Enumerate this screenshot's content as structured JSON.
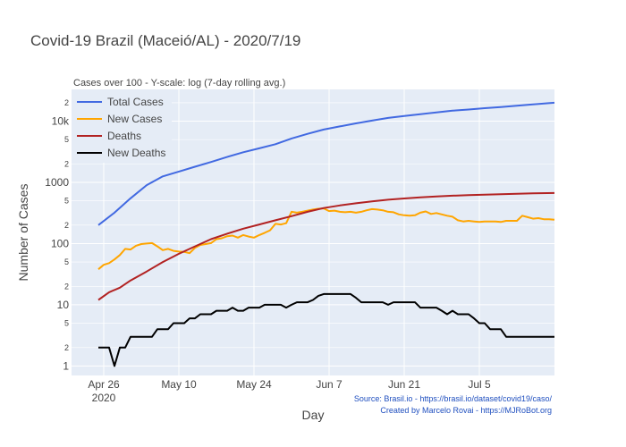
{
  "chart_data": {
    "type": "line",
    "title": "Covid-19 Brazil (Maceió/AL) - 2020/7/19",
    "subtitle": "Cases over 100 - Y-scale: log (7-day rolling avg.)",
    "xlabel": "Day",
    "ylabel": "Number of Cases",
    "yscale": "log",
    "ylim": [
      0.7,
      33000
    ],
    "xlim": [
      "2020-04-20",
      "2020-07-19"
    ],
    "grid": true,
    "legend_position": "top-left",
    "x_ticks": [
      {
        "date": "2020-04-26",
        "label": "Apr 26",
        "sublabel": "2020"
      },
      {
        "date": "2020-05-10",
        "label": "May 10"
      },
      {
        "date": "2020-05-24",
        "label": "May 24"
      },
      {
        "date": "2020-06-07",
        "label": "Jun 7"
      },
      {
        "date": "2020-06-21",
        "label": "Jun 21"
      },
      {
        "date": "2020-07-05",
        "label": "Jul 5"
      }
    ],
    "y_major_ticks": [
      {
        "value": 1,
        "label": "1"
      },
      {
        "value": 10,
        "label": "10"
      },
      {
        "value": 100,
        "label": "100"
      },
      {
        "value": 1000,
        "label": "1000"
      },
      {
        "value": 10000,
        "label": "10k"
      }
    ],
    "y_minor_ticks": [
      {
        "value": 2,
        "label": "2"
      },
      {
        "value": 5,
        "label": "5"
      },
      {
        "value": 20,
        "label": "2"
      },
      {
        "value": 50,
        "label": "5"
      },
      {
        "value": 200,
        "label": "2"
      },
      {
        "value": 500,
        "label": "5"
      },
      {
        "value": 2000,
        "label": "2"
      },
      {
        "value": 5000,
        "label": "5"
      },
      {
        "value": 20000,
        "label": "2"
      }
    ],
    "series": [
      {
        "name": "Total Cases",
        "color": "#4169e1",
        "x": [
          "2020-04-25",
          "2020-04-28",
          "2020-05-01",
          "2020-05-04",
          "2020-05-07",
          "2020-05-10",
          "2020-05-13",
          "2020-05-16",
          "2020-05-19",
          "2020-05-22",
          "2020-05-25",
          "2020-05-28",
          "2020-05-31",
          "2020-06-03",
          "2020-06-06",
          "2020-06-09",
          "2020-06-12",
          "2020-06-15",
          "2020-06-18",
          "2020-06-21",
          "2020-06-24",
          "2020-06-27",
          "2020-06-30",
          "2020-07-03",
          "2020-07-06",
          "2020-07-09",
          "2020-07-12",
          "2020-07-15",
          "2020-07-19"
        ],
        "values": [
          200,
          320,
          550,
          900,
          1250,
          1500,
          1800,
          2150,
          2600,
          3100,
          3600,
          4200,
          5200,
          6200,
          7300,
          8200,
          9200,
          10200,
          11300,
          12100,
          13000,
          13900,
          14800,
          15500,
          16300,
          17000,
          17900,
          18800,
          20000
        ]
      },
      {
        "name": "New Cases",
        "color": "#ffa500",
        "x": [
          "2020-04-25",
          "2020-04-26",
          "2020-04-27",
          "2020-04-28",
          "2020-04-29",
          "2020-04-30",
          "2020-05-01",
          "2020-05-02",
          "2020-05-03",
          "2020-05-04",
          "2020-05-05",
          "2020-05-06",
          "2020-05-07",
          "2020-05-08",
          "2020-05-09",
          "2020-05-10",
          "2020-05-11",
          "2020-05-12",
          "2020-05-13",
          "2020-05-14",
          "2020-05-15",
          "2020-05-16",
          "2020-05-17",
          "2020-05-18",
          "2020-05-19",
          "2020-05-20",
          "2020-05-21",
          "2020-05-22",
          "2020-05-23",
          "2020-05-24",
          "2020-05-25",
          "2020-05-26",
          "2020-05-27",
          "2020-05-28",
          "2020-05-29",
          "2020-05-30",
          "2020-05-31",
          "2020-06-01",
          "2020-06-02",
          "2020-06-03",
          "2020-06-04",
          "2020-06-05",
          "2020-06-06",
          "2020-06-07",
          "2020-06-08",
          "2020-06-09",
          "2020-06-10",
          "2020-06-11",
          "2020-06-12",
          "2020-06-13",
          "2020-06-14",
          "2020-06-15",
          "2020-06-16",
          "2020-06-17",
          "2020-06-18",
          "2020-06-19",
          "2020-06-20",
          "2020-06-21",
          "2020-06-22",
          "2020-06-23",
          "2020-06-24",
          "2020-06-25",
          "2020-06-26",
          "2020-06-27",
          "2020-06-28",
          "2020-06-29",
          "2020-06-30",
          "2020-07-01",
          "2020-07-02",
          "2020-07-03",
          "2020-07-04",
          "2020-07-05",
          "2020-07-06",
          "2020-07-07",
          "2020-07-08",
          "2020-07-09",
          "2020-07-10",
          "2020-07-11",
          "2020-07-12",
          "2020-07-13",
          "2020-07-14",
          "2020-07-15",
          "2020-07-16",
          "2020-07-17",
          "2020-07-18",
          "2020-07-19"
        ],
        "values": [
          38,
          45,
          48,
          55,
          65,
          82,
          80,
          92,
          98,
          100,
          102,
          90,
          78,
          82,
          76,
          74,
          73,
          70,
          85,
          95,
          98,
          102,
          118,
          122,
          132,
          135,
          125,
          138,
          130,
          125,
          138,
          150,
          165,
          210,
          205,
          215,
          330,
          320,
          330,
          345,
          360,
          370,
          375,
          340,
          345,
          330,
          325,
          330,
          320,
          330,
          350,
          365,
          360,
          350,
          330,
          325,
          300,
          290,
          285,
          290,
          320,
          335,
          305,
          315,
          300,
          285,
          275,
          240,
          230,
          235,
          230,
          225,
          230,
          230,
          230,
          225,
          235,
          235,
          235,
          285,
          270,
          255,
          260,
          250,
          250,
          245
        ]
      },
      {
        "name": "Deaths",
        "color": "#b22222",
        "x": [
          "2020-04-25",
          "2020-04-27",
          "2020-04-29",
          "2020-05-01",
          "2020-05-04",
          "2020-05-07",
          "2020-05-10",
          "2020-05-13",
          "2020-05-16",
          "2020-05-19",
          "2020-05-22",
          "2020-05-25",
          "2020-05-28",
          "2020-05-31",
          "2020-06-03",
          "2020-06-06",
          "2020-06-09",
          "2020-06-12",
          "2020-06-15",
          "2020-06-18",
          "2020-06-21",
          "2020-06-24",
          "2020-06-27",
          "2020-06-30",
          "2020-07-03",
          "2020-07-06",
          "2020-07-09",
          "2020-07-12",
          "2020-07-15",
          "2020-07-19"
        ],
        "values": [
          12,
          16,
          19,
          25,
          35,
          50,
          68,
          90,
          118,
          145,
          175,
          205,
          240,
          280,
          330,
          380,
          420,
          455,
          490,
          520,
          545,
          570,
          590,
          605,
          620,
          630,
          640,
          650,
          660,
          670
        ]
      },
      {
        "name": "New Deaths",
        "color": "#000000",
        "x": [
          "2020-04-25",
          "2020-04-26",
          "2020-04-27",
          "2020-04-28",
          "2020-04-29",
          "2020-04-30",
          "2020-05-01",
          "2020-05-02",
          "2020-05-03",
          "2020-05-04",
          "2020-05-05",
          "2020-05-06",
          "2020-05-07",
          "2020-05-08",
          "2020-05-09",
          "2020-05-10",
          "2020-05-11",
          "2020-05-12",
          "2020-05-13",
          "2020-05-14",
          "2020-05-15",
          "2020-05-16",
          "2020-05-17",
          "2020-05-18",
          "2020-05-19",
          "2020-05-20",
          "2020-05-21",
          "2020-05-22",
          "2020-05-23",
          "2020-05-24",
          "2020-05-25",
          "2020-05-26",
          "2020-05-27",
          "2020-05-28",
          "2020-05-29",
          "2020-05-30",
          "2020-05-31",
          "2020-06-01",
          "2020-06-02",
          "2020-06-03",
          "2020-06-04",
          "2020-06-05",
          "2020-06-06",
          "2020-06-07",
          "2020-06-08",
          "2020-06-09",
          "2020-06-10",
          "2020-06-11",
          "2020-06-12",
          "2020-06-13",
          "2020-06-14",
          "2020-06-15",
          "2020-06-16",
          "2020-06-17",
          "2020-06-18",
          "2020-06-19",
          "2020-06-20",
          "2020-06-21",
          "2020-06-22",
          "2020-06-23",
          "2020-06-24",
          "2020-06-25",
          "2020-06-26",
          "2020-06-27",
          "2020-06-28",
          "2020-06-29",
          "2020-06-30",
          "2020-07-01",
          "2020-07-02",
          "2020-07-03",
          "2020-07-04",
          "2020-07-05",
          "2020-07-06",
          "2020-07-07",
          "2020-07-08",
          "2020-07-09",
          "2020-07-10",
          "2020-07-11",
          "2020-07-12",
          "2020-07-13",
          "2020-07-14",
          "2020-07-15",
          "2020-07-16",
          "2020-07-17",
          "2020-07-18",
          "2020-07-19"
        ],
        "values": [
          2,
          2,
          2,
          1,
          2,
          2,
          3,
          3,
          3,
          3,
          3,
          4,
          4,
          4,
          5,
          5,
          5,
          6,
          6,
          7,
          7,
          7,
          8,
          8,
          8,
          9,
          8,
          8,
          9,
          9,
          9,
          10,
          10,
          10,
          10,
          9,
          10,
          11,
          11,
          11,
          12,
          14,
          15,
          15,
          15,
          15,
          15,
          15,
          13,
          11,
          11,
          11,
          11,
          11,
          10,
          11,
          11,
          11,
          11,
          11,
          9,
          9,
          9,
          9,
          8,
          7,
          8,
          7,
          7,
          7,
          6,
          5,
          5,
          4,
          4,
          4,
          3,
          3,
          3,
          3,
          3,
          3,
          3,
          3,
          3,
          3
        ]
      }
    ]
  },
  "source_line1": "Source: Brasil.io - https://brasil.io/dataset/covid19/caso/",
  "source_line2": "Created by Marcelo Rovai - https://MJRoBot.org"
}
